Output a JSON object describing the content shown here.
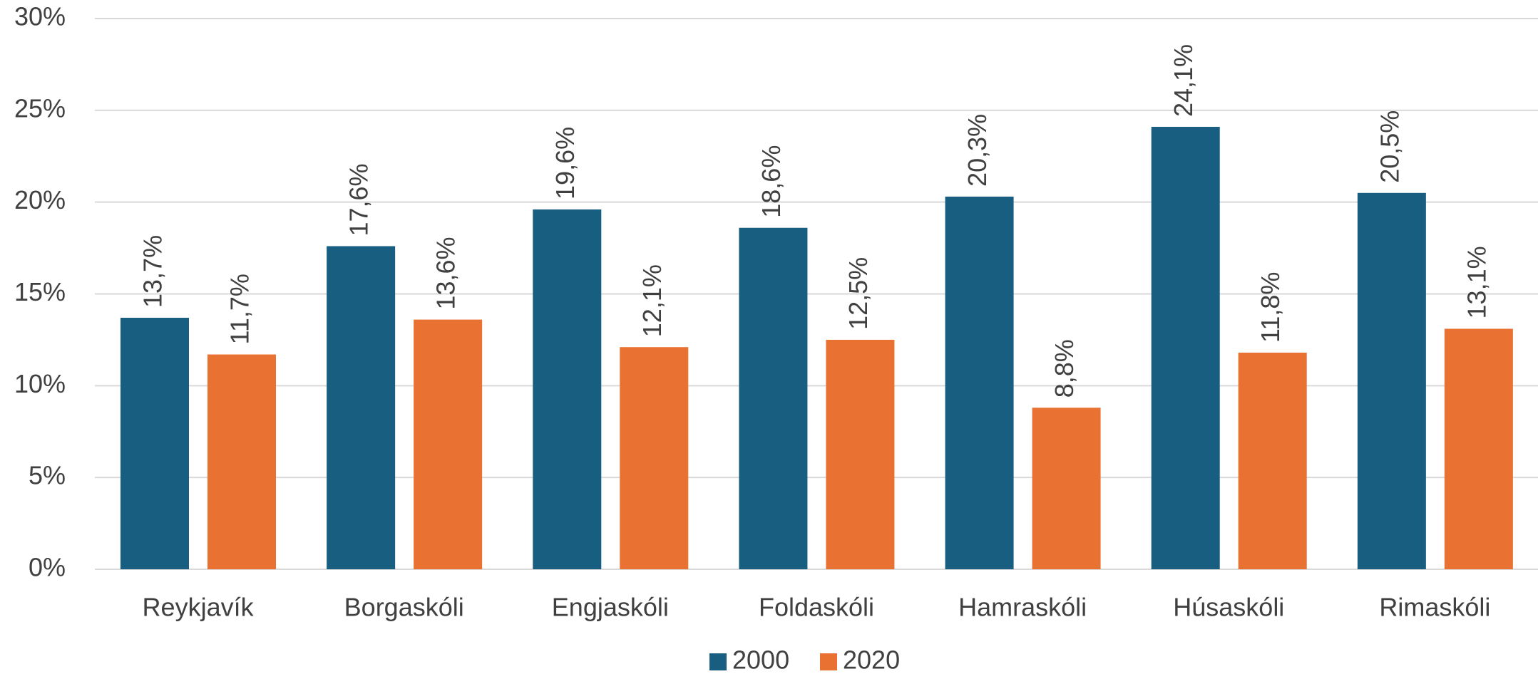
{
  "chart_data": {
    "type": "bar",
    "categories": [
      "Reykjavík",
      "Borgaskóli",
      "Engjaskóli",
      "Foldaskóli",
      "Hamraskóli",
      "Húsaskóli",
      "Rimaskóli"
    ],
    "series": [
      {
        "name": "2000",
        "color": "#175e80",
        "values": [
          13.7,
          17.6,
          19.6,
          18.6,
          20.3,
          24.1,
          20.5
        ],
        "value_labels": [
          "13,7%",
          "17,6%",
          "19,6%",
          "18,6%",
          "20,3%",
          "24,1%",
          "20,5%"
        ]
      },
      {
        "name": "2020",
        "color": "#e97132",
        "values": [
          11.7,
          13.6,
          12.1,
          12.5,
          8.8,
          11.8,
          13.1
        ],
        "value_labels": [
          "11,7%",
          "13,6%",
          "12,1%",
          "12,5%",
          "8,8%",
          "11,8%",
          "13,1%"
        ]
      }
    ],
    "ylim": [
      0,
      30
    ],
    "yticks": [
      {
        "value": 0,
        "label": "0%"
      },
      {
        "value": 5,
        "label": "5%"
      },
      {
        "value": 10,
        "label": "10%"
      },
      {
        "value": 15,
        "label": "15%"
      },
      {
        "value": 20,
        "label": "20%"
      },
      {
        "value": 25,
        "label": "25%"
      },
      {
        "value": 30,
        "label": "30%"
      }
    ],
    "grid": true,
    "legend": "bottom"
  }
}
